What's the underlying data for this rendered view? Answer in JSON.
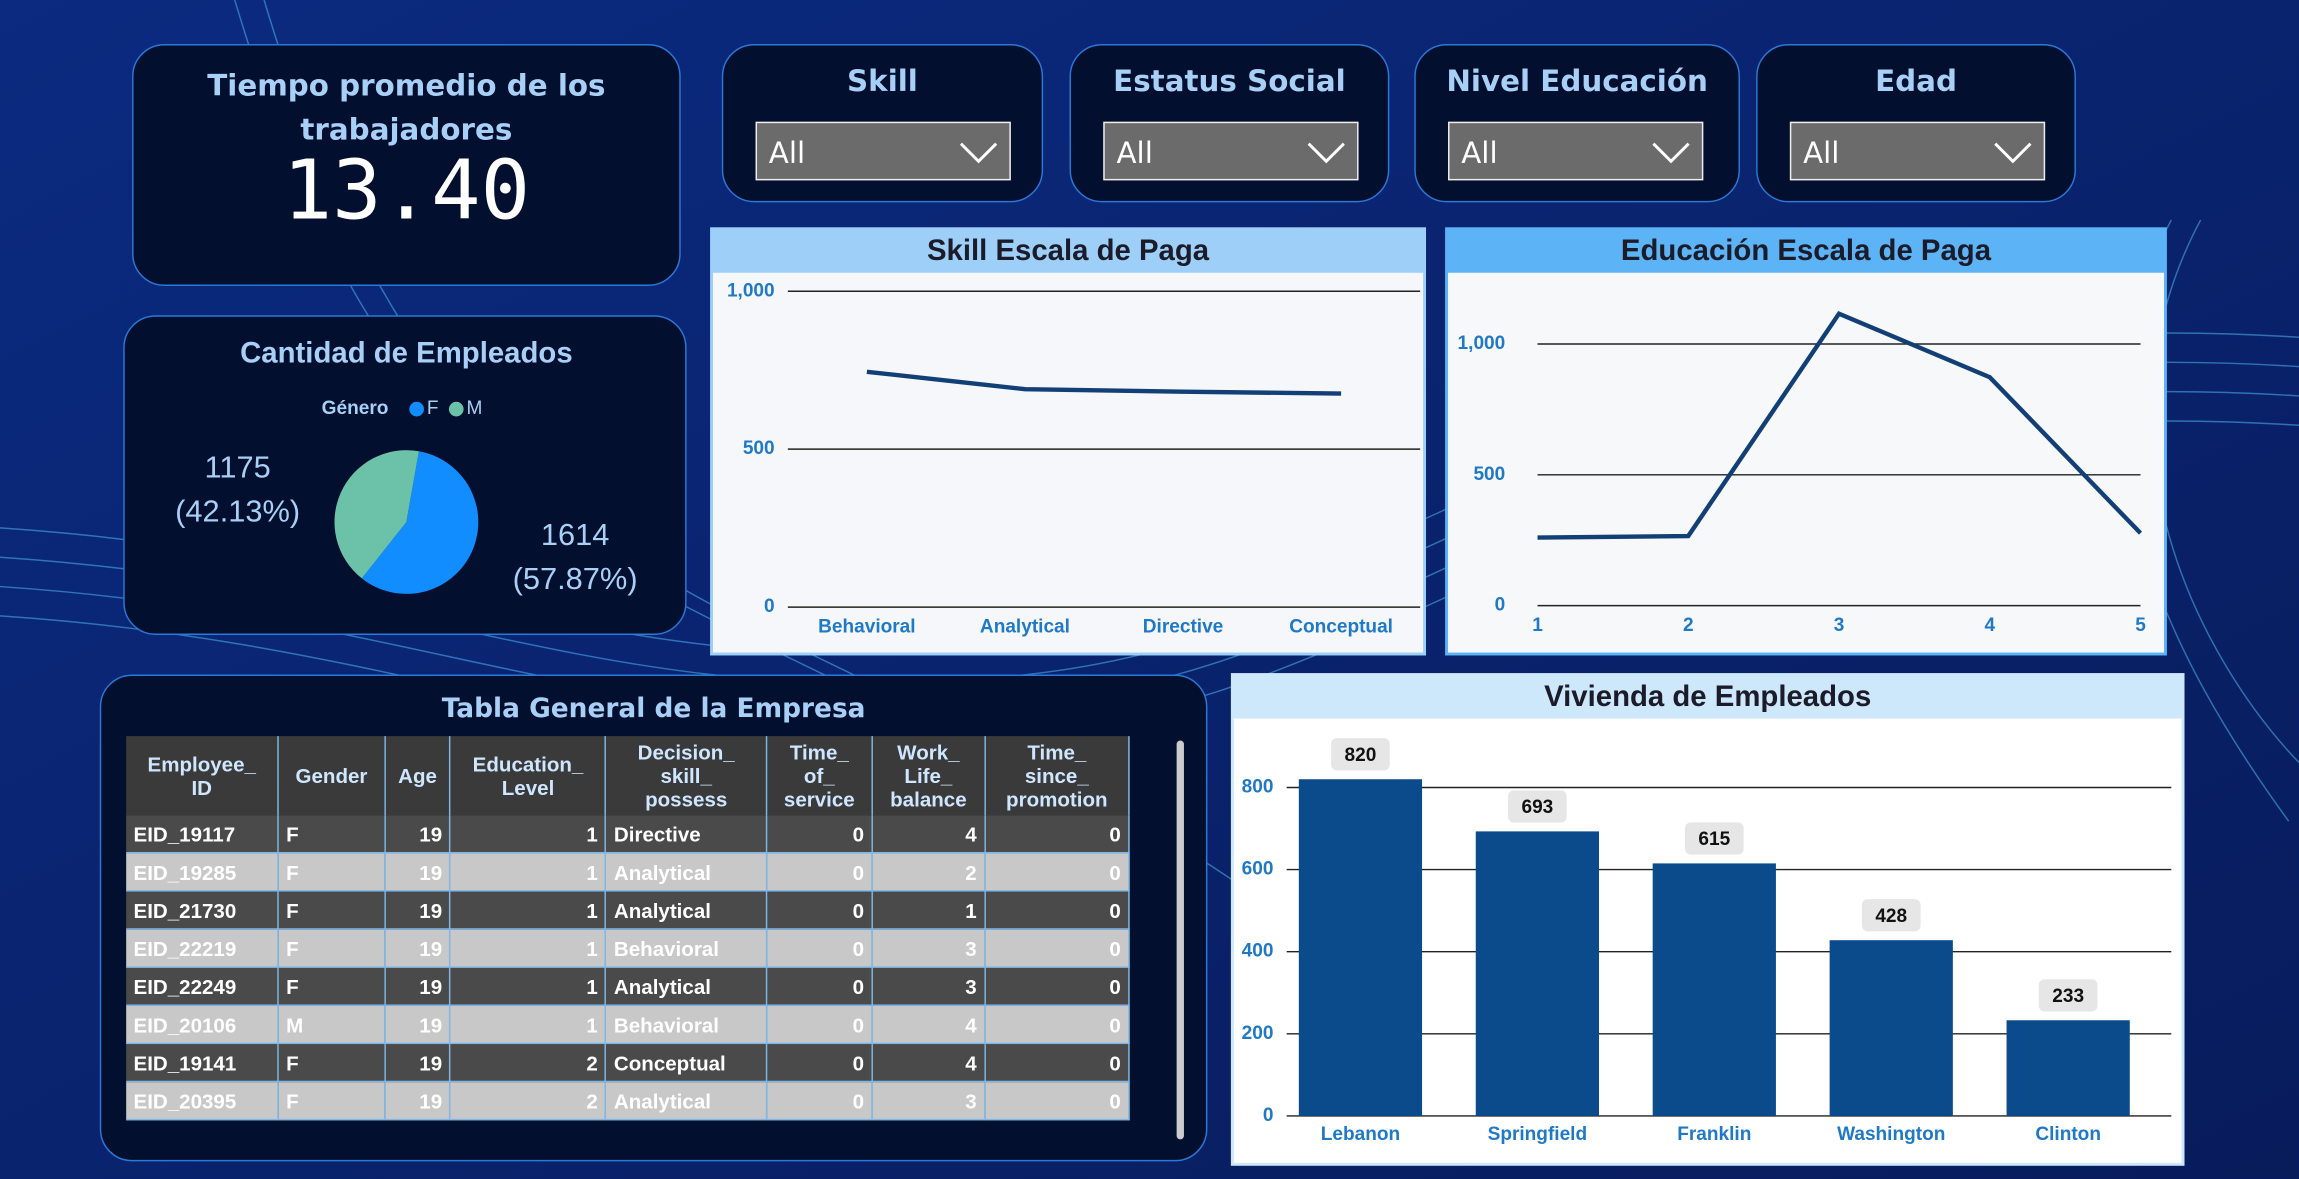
{
  "kpi": {
    "title": "Tiempo promedio de los trabajadores",
    "value": "13.40"
  },
  "slicers": [
    {
      "label": "Skill",
      "selected": "All"
    },
    {
      "label": "Estatus Social",
      "selected": "All"
    },
    {
      "label": "Nivel Educación",
      "selected": "All"
    },
    {
      "label": "Edad",
      "selected": "All"
    }
  ],
  "chart_data": [
    {
      "type": "pie",
      "title": "Cantidad de Empleados",
      "legend_title": "Género",
      "categories": [
        "F",
        "M"
      ],
      "values": [
        1614,
        1175
      ],
      "colors": [
        "#118dff",
        "#6cc2a8"
      ],
      "percentages": [
        {
          "value": 57.87,
          "label": "(57.87%)"
        },
        {
          "value": 42.13,
          "label": "(42.13%)"
        }
      ]
    },
    {
      "type": "line",
      "title": "Skill Escala de Paga",
      "categories": [
        "Behavioral",
        "Analytical",
        "Directive",
        "Conceptual"
      ],
      "values": [
        745,
        690,
        682,
        676
      ],
      "color": "#123f75",
      "ylim": [
        0,
        1040
      ],
      "yticks": [
        0,
        500,
        {
          "value": 1000,
          "label": "1,000"
        }
      ],
      "grid": true
    },
    {
      "type": "line",
      "title": "Educación Escala de Paga",
      "x": [
        1,
        2,
        3,
        4,
        5
      ],
      "values": [
        260,
        266,
        1116,
        873,
        277
      ],
      "color": "#123f75",
      "xlim": [
        1,
        5
      ],
      "xticks": [
        1,
        2,
        3,
        4,
        5
      ],
      "ylim": [
        0,
        1250
      ],
      "yticks": [
        0,
        500,
        {
          "value": 1000,
          "label": "1,000"
        }
      ],
      "grid": true
    },
    {
      "type": "bar",
      "title": "Vivienda de Empleados",
      "categories": [
        "Lebanon",
        "Springfield",
        "Franklin",
        "Washington",
        "Clinton"
      ],
      "values": [
        820,
        693,
        615,
        428,
        233
      ],
      "color": "#0b4a8b",
      "ylim": [
        0,
        900
      ],
      "yticks": [
        0,
        200,
        400,
        600,
        800
      ],
      "grid": true
    }
  ],
  "table": {
    "title": "Tabla General de la Empresa",
    "columns": [
      "Employee_ID",
      "Gender",
      "Age",
      "Education_Level",
      "Decision_skill_possess",
      "Time_of_service",
      "Work_Life_balance",
      "Time_since_promotion"
    ],
    "rows": [
      [
        "EID_19117",
        "F",
        19,
        1,
        "Directive",
        0,
        4,
        0
      ],
      [
        "EID_19285",
        "F",
        19,
        1,
        "Analytical",
        0,
        2,
        0
      ],
      [
        "EID_21730",
        "F",
        19,
        1,
        "Analytical",
        0,
        1,
        0
      ],
      [
        "EID_22219",
        "F",
        19,
        1,
        "Behavioral",
        0,
        3,
        0
      ],
      [
        "EID_22249",
        "F",
        19,
        1,
        "Analytical",
        0,
        3,
        0
      ],
      [
        "EID_20106",
        "M",
        19,
        1,
        "Behavioral",
        0,
        4,
        0
      ],
      [
        "EID_19141",
        "F",
        19,
        2,
        "Conceptual",
        0,
        4,
        0
      ],
      [
        "EID_20395",
        "F",
        19,
        2,
        "Analytical",
        0,
        3,
        0
      ]
    ]
  }
}
